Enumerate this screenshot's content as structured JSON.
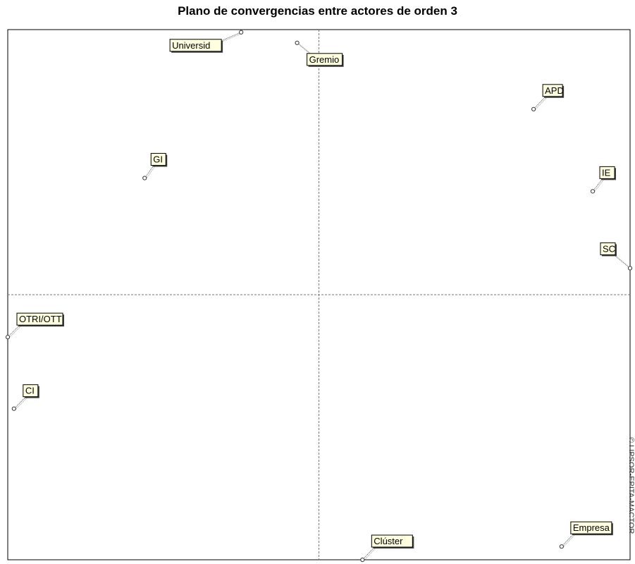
{
  "title": "Plano de convergencias entre actores de orden 3",
  "watermark": "© LIPSOR-EPITA-MACTOR",
  "chart_data": {
    "type": "scatter",
    "title": "Plano de convergencias entre actores de orden 3",
    "xlabel": "",
    "ylabel": "",
    "xlim": [
      -1,
      1
    ],
    "ylim": [
      -1,
      1
    ],
    "grid": false,
    "axes": "dashed lines through origin",
    "label_style": {
      "fill": "#ffffe0",
      "border": "#000000",
      "leader": "dotted"
    },
    "points": [
      {
        "label": "Universid",
        "x": -0.25,
        "y": 0.99
      },
      {
        "label": "Gremio",
        "x": -0.07,
        "y": 0.95
      },
      {
        "label": "APD",
        "x": 0.69,
        "y": 0.7
      },
      {
        "label": "GI",
        "x": -0.56,
        "y": 0.44
      },
      {
        "label": "IE",
        "x": 0.88,
        "y": 0.39
      },
      {
        "label": "SC",
        "x": 1.0,
        "y": 0.1
      },
      {
        "label": "OTRI/OTT",
        "x": -1.0,
        "y": -0.16
      },
      {
        "label": "CI",
        "x": -0.98,
        "y": -0.43
      },
      {
        "label": "Clúster",
        "x": 0.14,
        "y": -1.0
      },
      {
        "label": "Empresa",
        "x": 0.78,
        "y": -0.95
      }
    ]
  }
}
